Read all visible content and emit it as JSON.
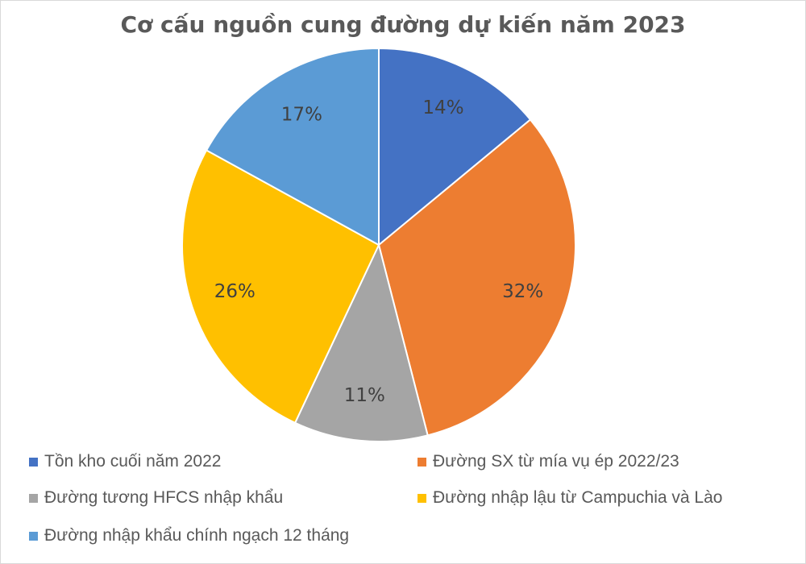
{
  "chart_data": {
    "type": "pie",
    "title": "Cơ cấu nguồn cung đường dự kiến năm 2023",
    "slices": [
      {
        "name": "Tồn kho cuối năm 2022",
        "value": 14,
        "label": "14%",
        "color": "#4472C4"
      },
      {
        "name": "Đường SX từ mía vụ ép 2022/23",
        "value": 32,
        "label": "32%",
        "color": "#ED7D31"
      },
      {
        "name": "Đường tương HFCS nhập khẩu",
        "value": 11,
        "label": "11%",
        "color": "#A5A5A5"
      },
      {
        "name": "Đường nhập lậu từ Campuchia và Lào",
        "value": 26,
        "label": "26%",
        "color": "#FFC000"
      },
      {
        "name": "Đường nhập khẩu chính ngạch 12 tháng",
        "value": 17,
        "label": "17%",
        "color": "#5B9BD5"
      }
    ],
    "legend_position": "bottom"
  }
}
